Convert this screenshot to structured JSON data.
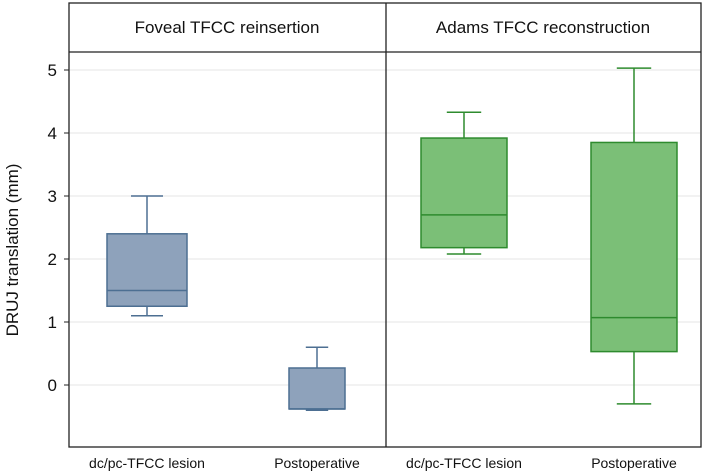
{
  "chart_data": {
    "type": "boxplot",
    "ylabel": "DRUJ translation (mm)",
    "ylim": [
      -1,
      5.3
    ],
    "yticks": [
      0,
      1,
      2,
      3,
      4,
      5
    ],
    "grid": true,
    "panels": [
      {
        "title": "Foveal TFCC reinsertion",
        "color": "#8ea2bb",
        "stroke": "#4d6f92",
        "boxes": [
          {
            "category": "dc/pc-TFCC lesion",
            "min": 1.1,
            "q1": 1.25,
            "median": 1.5,
            "q3": 2.4,
            "max": 3.0
          },
          {
            "category": "Postoperative",
            "min": -0.4,
            "q1": -0.38,
            "median": -0.38,
            "q3": 0.27,
            "max": 0.6
          }
        ]
      },
      {
        "title": "Adams TFCC reconstruction",
        "color": "#7bbf77",
        "stroke": "#2e8b2e",
        "boxes": [
          {
            "category": "dc/pc-TFCC lesion",
            "min": 2.08,
            "q1": 2.18,
            "median": 2.7,
            "q3": 3.92,
            "max": 4.33
          },
          {
            "category": "Postoperative",
            "min": -0.3,
            "q1": 0.53,
            "median": 1.07,
            "q3": 3.85,
            "max": 5.03
          }
        ]
      }
    ]
  }
}
